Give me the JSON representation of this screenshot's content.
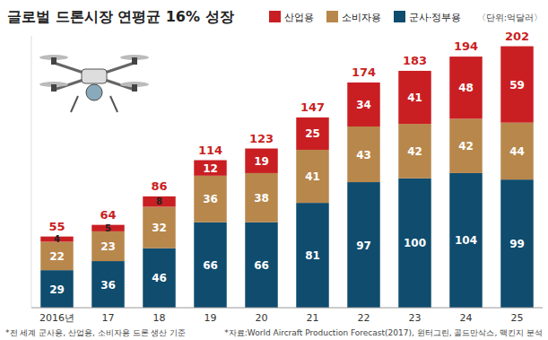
{
  "chart_data": {
    "type": "bar",
    "title": "글로벌 드론시장 연평균 16% 성장",
    "subtitle": "〈단위:억달러〉",
    "categories": [
      "2016년",
      "17",
      "18",
      "19",
      "20",
      "21",
      "22",
      "23",
      "24",
      "25"
    ],
    "series": [
      {
        "name": "군사·정부용",
        "color": "#0f4c6e",
        "values": [
          29,
          36,
          46,
          66,
          66,
          81,
          97,
          100,
          104,
          99
        ]
      },
      {
        "name": "소비자용",
        "color": "#b8874c",
        "values": [
          22,
          23,
          32,
          36,
          38,
          41,
          43,
          42,
          42,
          44
        ]
      },
      {
        "name": "산업용",
        "color": "#c91f23",
        "values": [
          4,
          5,
          8,
          12,
          19,
          25,
          34,
          41,
          48,
          59
        ]
      }
    ],
    "totals": [
      55,
      64,
      86,
      114,
      123,
      147,
      174,
      183,
      194,
      202
    ],
    "ylim": [
      0,
      210
    ],
    "stacked": true,
    "data_labels": true,
    "tick_labels": "x",
    "grid": false,
    "legend": "top-right",
    "notes": [
      "*전 세계 군사용, 산업용, 소비자용 드론 생산 기준",
      "*자료:World Aircraft Production Forecast(2017), 윈터그린, 골드만삭스, 맥킨지 분석"
    ]
  }
}
